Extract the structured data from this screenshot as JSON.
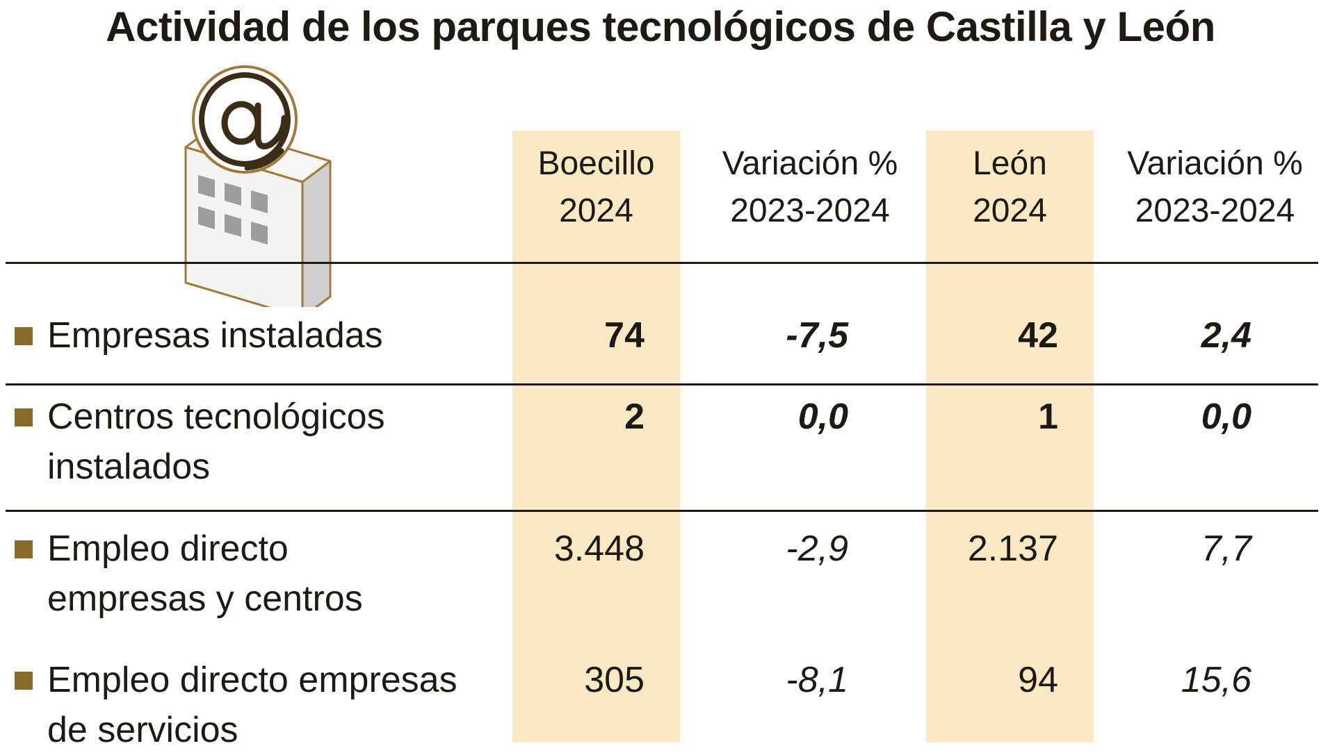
{
  "chart_data": {
    "type": "table",
    "title": "Actividad de los parques tecnológicos de Castilla y León",
    "columns": [
      [
        "Boecillo",
        "2024"
      ],
      [
        "Variación %",
        "2023-2024"
      ],
      [
        "León",
        "2024"
      ],
      [
        "Variación %",
        "2023-2024"
      ]
    ],
    "rows": [
      {
        "label": [
          "Empresas instaladas"
        ],
        "values": [
          "74",
          "-7,5",
          "42",
          "2,4"
        ]
      },
      {
        "label": [
          "Centros tecnológicos",
          "instalados"
        ],
        "values": [
          "2",
          "0,0",
          "1",
          "0,0"
        ]
      },
      {
        "label": [
          "Empleo directo",
          "empresas y centros"
        ],
        "values": [
          "3.448",
          "-2,9",
          "2.137",
          "7,7"
        ]
      },
      {
        "label": [
          "Empleo directo empresas",
          "de servicios"
        ],
        "values": [
          "305",
          "-8,1",
          "94",
          "15,6"
        ]
      }
    ],
    "icon": "building-at-sign-icon",
    "colors": {
      "highlight_band": "#fbe8c4",
      "bullet": "#8a6a28",
      "text": "#1d1a15"
    }
  }
}
